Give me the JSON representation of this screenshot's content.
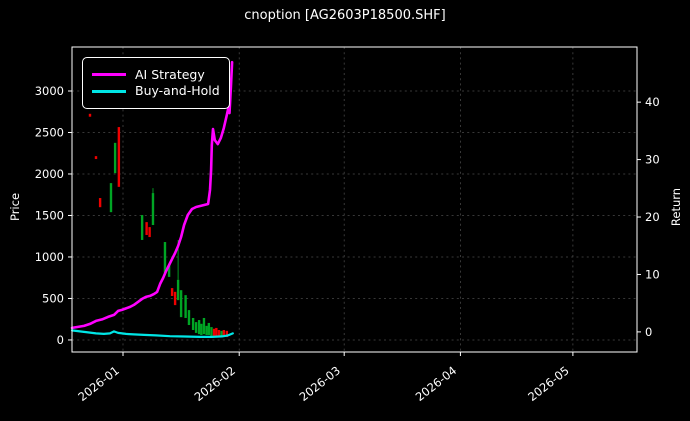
{
  "chart_data": {
    "type": "candlestick+line",
    "title": "cnoption [AG2603P18500.SHF]",
    "ylabel_left": "Price",
    "ylabel_right": "Return",
    "legend_position": "upper-left",
    "grid": "dashed",
    "colors": {
      "background": "#000000",
      "foreground": "#ffffff",
      "grid": "#4a4a4a",
      "candle_up": "#00a524",
      "candle_down": "#ef0000",
      "ai_strategy": "#ff00ff",
      "buy_and_hold": "#00e6e6"
    },
    "x_axis": {
      "unit": "days since 2026-01-01",
      "lim": [
        -13.6,
        137.1
      ],
      "ticks": [
        {
          "t": 0,
          "label": "2026-01"
        },
        {
          "t": 31,
          "label": "2026-02"
        },
        {
          "t": 59,
          "label": "2026-03"
        },
        {
          "t": 90,
          "label": "2026-04"
        },
        {
          "t": 120,
          "label": "2026-05"
        }
      ]
    },
    "price_axis": {
      "lim": [
        -145,
        3530
      ],
      "ticks": [
        {
          "v": 0,
          "label": "0"
        },
        {
          "v": 500,
          "label": "500"
        },
        {
          "v": 1000,
          "label": "1000"
        },
        {
          "v": 1500,
          "label": "1500"
        },
        {
          "v": 2000,
          "label": "2000"
        },
        {
          "v": 2500,
          "label": "2500"
        },
        {
          "v": 3000,
          "label": "3000"
        }
      ]
    },
    "return_axis": {
      "lim": [
        -3.5,
        49.6
      ],
      "ticks": [
        {
          "v": 0,
          "label": "0"
        },
        {
          "v": 10,
          "label": "10"
        },
        {
          "v": 20,
          "label": "20"
        },
        {
          "v": 30,
          "label": "30"
        },
        {
          "v": 40,
          "label": "40"
        }
      ]
    },
    "candles": [
      [
        -8.8,
        2725,
        2690,
        "d"
      ],
      [
        -7.2,
        2215,
        2180,
        "d"
      ],
      [
        -6.1,
        1710,
        1600,
        "d"
      ],
      [
        -3.2,
        1890,
        1540,
        "u"
      ],
      [
        -2.1,
        2375,
        2010,
        "u"
      ],
      [
        -1.1,
        2565,
        1845,
        "d"
      ],
      [
        5.1,
        1505,
        1205,
        "u"
      ],
      [
        6.3,
        1420,
        1265,
        "d"
      ],
      [
        7.1,
        1360,
        1240,
        "d"
      ],
      [
        8.0,
        1770,
        1385,
        "u",
        1830
      ],
      [
        11.2,
        1180,
        805,
        "u"
      ],
      [
        12.3,
        905,
        760,
        "u"
      ],
      [
        13.1,
        625,
        530,
        "d"
      ],
      [
        13.9,
        580,
        420,
        "d"
      ],
      [
        14.7,
        725,
        480,
        "u",
        1205
      ],
      [
        15.5,
        600,
        275,
        "u"
      ],
      [
        16.7,
        540,
        265,
        "u"
      ],
      [
        17.6,
        360,
        180,
        "u"
      ],
      [
        18.7,
        265,
        120,
        "u"
      ],
      [
        19.5,
        215,
        85,
        "u"
      ],
      [
        20.3,
        240,
        70,
        "u"
      ],
      [
        20.9,
        195,
        60,
        "u"
      ],
      [
        21.6,
        265,
        70,
        "u"
      ],
      [
        22.3,
        170,
        60,
        "u"
      ],
      [
        22.9,
        205,
        60,
        "u"
      ],
      [
        23.6,
        155,
        50,
        "u"
      ],
      [
        24.3,
        135,
        50,
        "d"
      ],
      [
        24.9,
        145,
        50,
        "d"
      ],
      [
        25.6,
        120,
        35,
        "d"
      ],
      [
        26.3,
        110,
        50,
        "u"
      ],
      [
        26.9,
        120,
        35,
        "d"
      ],
      [
        27.7,
        110,
        35,
        "d"
      ]
    ],
    "series": [
      {
        "name": "AI Strategy",
        "color_key": "ai_strategy",
        "axis": "return",
        "line_width": 2.6,
        "points": [
          [
            -13.6,
            0.7
          ],
          [
            -12.0,
            0.87
          ],
          [
            -10.4,
            1.04
          ],
          [
            -8.8,
            1.39
          ],
          [
            -7.2,
            1.91
          ],
          [
            -5.6,
            2.17
          ],
          [
            -4.0,
            2.61
          ],
          [
            -2.4,
            2.96
          ],
          [
            -1.3,
            3.65
          ],
          [
            -0.3,
            3.83
          ],
          [
            0.8,
            4.09
          ],
          [
            1.9,
            4.35
          ],
          [
            2.9,
            4.7
          ],
          [
            4.0,
            5.22
          ],
          [
            5.1,
            5.74
          ],
          [
            6.1,
            6.09
          ],
          [
            7.2,
            6.26
          ],
          [
            8.3,
            6.61
          ],
          [
            9.1,
            6.96
          ],
          [
            9.9,
            8.35
          ],
          [
            10.7,
            9.39
          ],
          [
            11.5,
            10.61
          ],
          [
            12.3,
            11.65
          ],
          [
            13.1,
            12.7
          ],
          [
            13.9,
            13.74
          ],
          [
            14.7,
            14.96
          ],
          [
            15.5,
            16.52
          ],
          [
            16.3,
            18.61
          ],
          [
            17.3,
            20.35
          ],
          [
            18.4,
            21.39
          ],
          [
            19.5,
            21.74
          ],
          [
            21.1,
            22.0
          ],
          [
            22.7,
            22.26
          ],
          [
            23.2,
            24.7
          ],
          [
            23.5,
            28.17
          ],
          [
            23.7,
            32.52
          ],
          [
            24.0,
            35.3
          ],
          [
            24.5,
            33.39
          ],
          [
            25.3,
            32.7
          ],
          [
            26.1,
            33.74
          ],
          [
            26.9,
            35.48
          ],
          [
            27.7,
            37.74
          ],
          [
            28.1,
            38.96
          ],
          [
            28.4,
            38.09
          ],
          [
            28.8,
            42.96
          ],
          [
            29.1,
            46.96
          ]
        ]
      },
      {
        "name": "Buy-and-Hold",
        "color_key": "buy_and_hold",
        "axis": "return",
        "line_width": 2.2,
        "points": [
          [
            -13.6,
            0.26
          ],
          [
            -11.5,
            0.09
          ],
          [
            -9.3,
            -0.09
          ],
          [
            -7.2,
            -0.26
          ],
          [
            -5.1,
            -0.35
          ],
          [
            -3.5,
            -0.26
          ],
          [
            -2.4,
            0.09
          ],
          [
            -1.3,
            -0.17
          ],
          [
            0.8,
            -0.35
          ],
          [
            2.9,
            -0.43
          ],
          [
            5.6,
            -0.52
          ],
          [
            8.8,
            -0.61
          ],
          [
            12.5,
            -0.75
          ],
          [
            16.5,
            -0.8
          ],
          [
            20.5,
            -0.87
          ],
          [
            23.7,
            -0.87
          ],
          [
            26.4,
            -0.78
          ],
          [
            28.0,
            -0.61
          ],
          [
            29.3,
            -0.26
          ]
        ]
      }
    ]
  }
}
